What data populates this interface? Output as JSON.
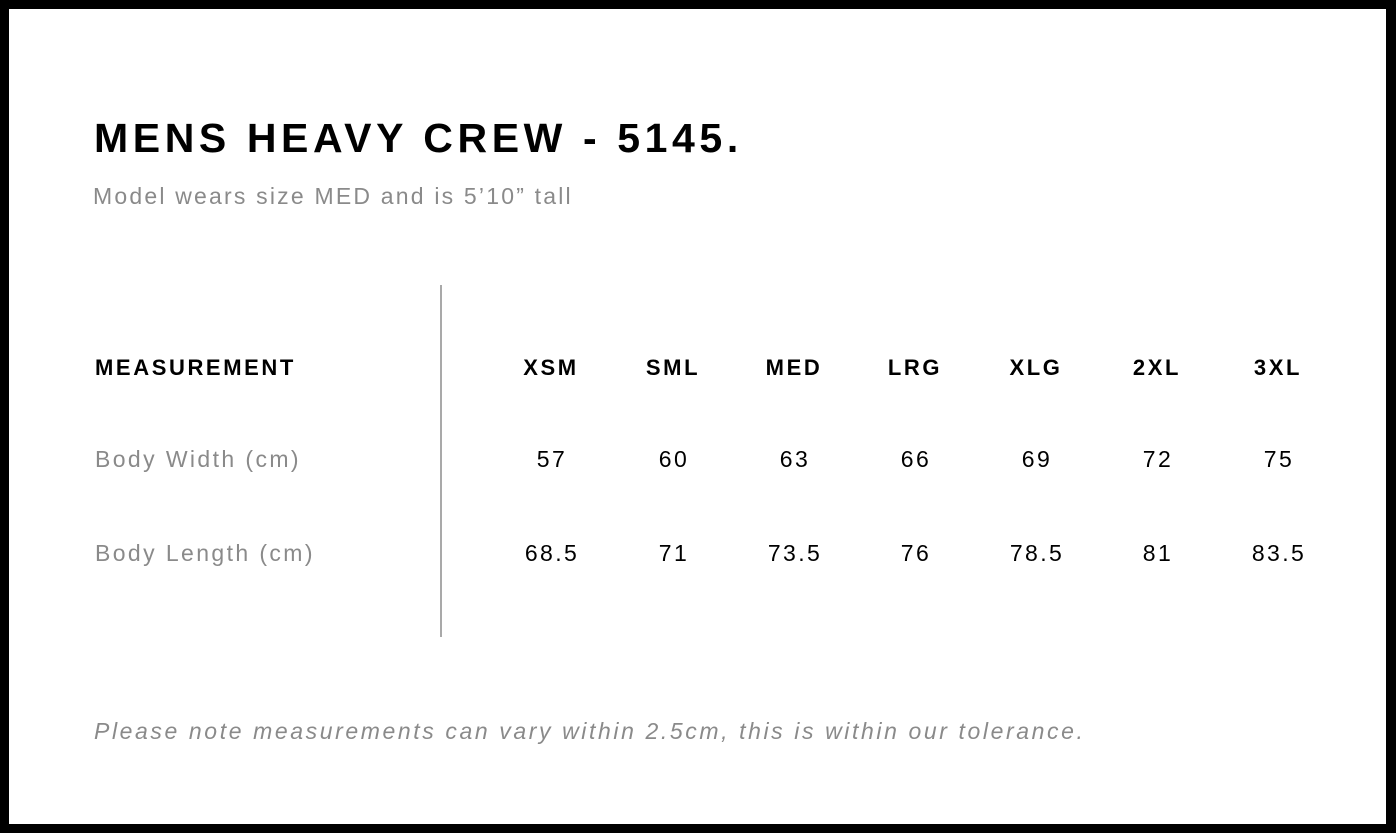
{
  "title": "MENS HEAVY CREW - 5145.",
  "subtitle": "Model wears size MED and is 5’10” tall",
  "table": {
    "header_label": "MEASUREMENT",
    "sizes": [
      "XSM",
      "SML",
      "MED",
      "LRG",
      "XLG",
      "2XL",
      "3XL"
    ],
    "rows": [
      {
        "label": "Body Width (cm)",
        "values": [
          "57",
          "60",
          "63",
          "66",
          "69",
          "72",
          "75"
        ]
      },
      {
        "label": "Body Length (cm)",
        "values": [
          "68.5",
          "71",
          "73.5",
          "76",
          "78.5",
          "81",
          "83.5"
        ]
      }
    ]
  },
  "note": "Please note measurements can vary within 2.5cm, this is within our tolerance.",
  "colors": {
    "frame": "#000000",
    "muted_text": "#8a8a8a",
    "divider": "#a9a9a9"
  }
}
